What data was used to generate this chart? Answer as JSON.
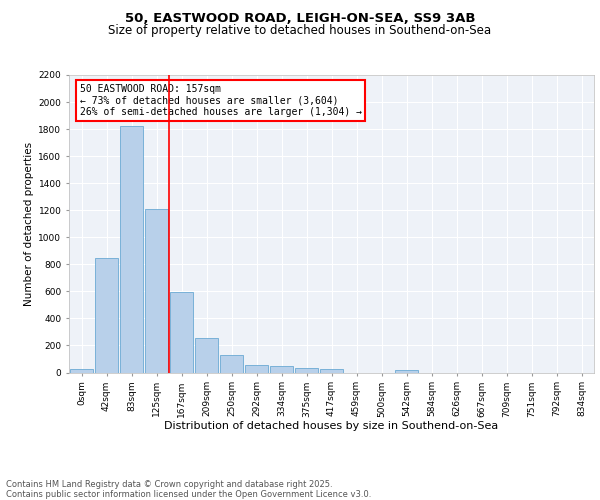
{
  "title1": "50, EASTWOOD ROAD, LEIGH-ON-SEA, SS9 3AB",
  "title2": "Size of property relative to detached houses in Southend-on-Sea",
  "xlabel": "Distribution of detached houses by size in Southend-on-Sea",
  "ylabel": "Number of detached properties",
  "bar_labels": [
    "0sqm",
    "42sqm",
    "83sqm",
    "125sqm",
    "167sqm",
    "209sqm",
    "250sqm",
    "292sqm",
    "334sqm",
    "375sqm",
    "417sqm",
    "459sqm",
    "500sqm",
    "542sqm",
    "584sqm",
    "626sqm",
    "667sqm",
    "709sqm",
    "751sqm",
    "792sqm",
    "834sqm"
  ],
  "bar_values": [
    25,
    845,
    1820,
    1210,
    595,
    255,
    130,
    53,
    48,
    35,
    25,
    0,
    0,
    15,
    0,
    0,
    0,
    0,
    0,
    0,
    0
  ],
  "bar_color": "#b8d0ea",
  "bar_edge_color": "#6aaad4",
  "vline_color": "red",
  "annotation_text": "50 EASTWOOD ROAD: 157sqm\n← 73% of detached houses are smaller (3,604)\n26% of semi-detached houses are larger (1,304) →",
  "annotation_box_color": "white",
  "annotation_box_edge": "red",
  "ylim": [
    0,
    2200
  ],
  "yticks": [
    0,
    200,
    400,
    600,
    800,
    1000,
    1200,
    1400,
    1600,
    1800,
    2000,
    2200
  ],
  "background_color": "#eef2f8",
  "grid_color": "white",
  "footnote": "Contains HM Land Registry data © Crown copyright and database right 2025.\nContains public sector information licensed under the Open Government Licence v3.0.",
  "title1_fontsize": 9.5,
  "title2_fontsize": 8.5,
  "xlabel_fontsize": 8,
  "ylabel_fontsize": 7.5,
  "tick_fontsize": 6.5,
  "annot_fontsize": 7,
  "footnote_fontsize": 6
}
